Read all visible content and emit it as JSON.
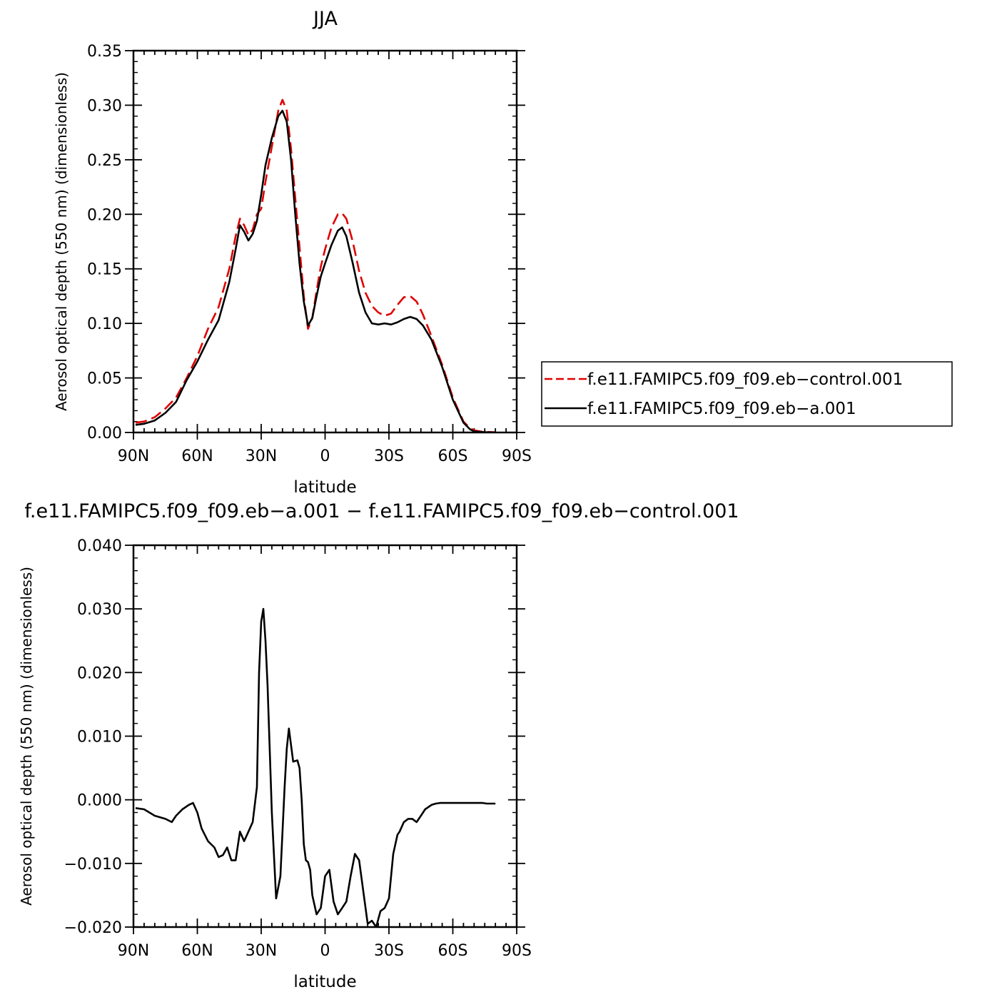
{
  "chart_data": [
    {
      "type": "line",
      "title": "JJA",
      "xlabel": "latitude",
      "ylabel": "Aerosol optical depth (550 nm) (dimensionless)",
      "xlim": [
        -90,
        90
      ],
      "ylim": [
        0,
        0.35
      ],
      "xticks": [
        -90,
        -60,
        -30,
        0,
        30,
        60,
        90
      ],
      "xtick_labels": [
        "90N",
        "60N",
        "30N",
        "0",
        "30S",
        "60S",
        "90S"
      ],
      "yticks": [
        0,
        0.05,
        0.1,
        0.15,
        0.2,
        0.25,
        0.3,
        0.35
      ],
      "ytick_labels": [
        "0.00",
        "0.05",
        "0.10",
        "0.15",
        "0.20",
        "0.25",
        "0.30",
        "0.35"
      ],
      "legend_position": "right",
      "series": [
        {
          "name": "f.e11.FAMIPC5.f09_f09.eb−control.001",
          "color": "#e00000",
          "dash": "dashed",
          "x": [
            -89,
            -85,
            -80,
            -75,
            -70,
            -65,
            -60,
            -55,
            -50,
            -45,
            -42,
            -40,
            -38,
            -36,
            -34,
            -32,
            -30,
            -28,
            -25,
            -22,
            -20,
            -18,
            -16,
            -14,
            -12,
            -10,
            -8,
            -6,
            -4,
            -2,
            0,
            3,
            6,
            8,
            10,
            13,
            16,
            19,
            22,
            25,
            28,
            31,
            34,
            37,
            40,
            43,
            46,
            50,
            55,
            60,
            65,
            68,
            70,
            73,
            76,
            80
          ],
          "y": [
            0.009,
            0.01,
            0.014,
            0.022,
            0.032,
            0.05,
            0.07,
            0.095,
            0.115,
            0.15,
            0.18,
            0.196,
            0.19,
            0.181,
            0.186,
            0.2,
            0.205,
            0.23,
            0.262,
            0.295,
            0.305,
            0.295,
            0.26,
            0.215,
            0.17,
            0.125,
            0.095,
            0.105,
            0.13,
            0.152,
            0.168,
            0.188,
            0.2,
            0.201,
            0.196,
            0.175,
            0.148,
            0.128,
            0.116,
            0.11,
            0.107,
            0.109,
            0.117,
            0.124,
            0.125,
            0.12,
            0.108,
            0.088,
            0.062,
            0.032,
            0.01,
            0.004,
            0.002,
            0.001,
            0.0005,
            0.0002
          ]
        },
        {
          "name": "f.e11.FAMIPC5.f09_f09.eb−a.001",
          "color": "#000000",
          "dash": "solid",
          "x": [
            -89,
            -85,
            -80,
            -75,
            -70,
            -65,
            -60,
            -55,
            -50,
            -45,
            -42,
            -40,
            -38,
            -36,
            -34,
            -32,
            -30,
            -28,
            -25,
            -22,
            -20,
            -18,
            -16,
            -14,
            -12,
            -10,
            -8,
            -6,
            -4,
            -2,
            0,
            3,
            6,
            8,
            10,
            13,
            16,
            19,
            22,
            25,
            28,
            31,
            34,
            37,
            40,
            43,
            46,
            50,
            55,
            60,
            65,
            68,
            70,
            73,
            76,
            80
          ],
          "y": [
            0.007,
            0.008,
            0.011,
            0.018,
            0.028,
            0.048,
            0.065,
            0.085,
            0.103,
            0.138,
            0.168,
            0.19,
            0.184,
            0.176,
            0.182,
            0.194,
            0.218,
            0.245,
            0.27,
            0.29,
            0.295,
            0.285,
            0.25,
            0.2,
            0.155,
            0.12,
            0.098,
            0.105,
            0.125,
            0.143,
            0.155,
            0.172,
            0.185,
            0.188,
            0.18,
            0.155,
            0.128,
            0.11,
            0.1,
            0.099,
            0.1,
            0.099,
            0.101,
            0.104,
            0.106,
            0.104,
            0.098,
            0.085,
            0.06,
            0.03,
            0.009,
            0.003,
            0.001,
            0.0005,
            0.0002,
            0.0001
          ]
        }
      ]
    },
    {
      "type": "line",
      "title": "f.e11.FAMIPC5.f09_f09.eb−a.001 − f.e11.FAMIPC5.f09_f09.eb−control.001",
      "xlabel": "latitude",
      "ylabel": "Aerosol optical depth (550 nm) (dimensionless)",
      "xlim": [
        -90,
        90
      ],
      "ylim": [
        -0.02,
        0.04
      ],
      "xticks": [
        -90,
        -60,
        -30,
        0,
        30,
        60,
        90
      ],
      "xtick_labels": [
        "90N",
        "60N",
        "30N",
        "0",
        "30S",
        "60S",
        "90S"
      ],
      "yticks": [
        -0.02,
        -0.01,
        0,
        0.01,
        0.02,
        0.03,
        0.04
      ],
      "ytick_labels": [
        "−0.020",
        "−0.010",
        "0.000",
        "0.010",
        "0.020",
        "0.030",
        "0.040"
      ],
      "series": [
        {
          "color": "#000000",
          "dash": "solid",
          "x": [
            -89,
            -85,
            -80,
            -75,
            -72,
            -70,
            -67,
            -64,
            -62,
            -60,
            -58,
            -55,
            -52,
            -50,
            -48,
            -46,
            -44,
            -42,
            -40,
            -38,
            -36,
            -34,
            -32,
            -31,
            -30,
            -29,
            -28,
            -27,
            -25,
            -23,
            -21,
            -19,
            -18,
            -17,
            -15,
            -13,
            -12,
            -11,
            -10,
            -9,
            -8,
            -7,
            -6,
            -4,
            -2,
            0,
            2,
            4,
            6,
            8,
            10,
            12,
            14,
            16,
            18,
            20,
            22,
            24,
            26,
            28,
            30,
            32,
            34,
            35,
            37,
            39,
            41,
            43,
            45,
            47,
            50,
            52,
            54,
            56,
            58,
            60,
            62,
            64,
            66,
            67,
            68,
            70,
            72,
            74,
            76,
            80
          ],
          "y": [
            -0.0013,
            -0.0015,
            -0.0025,
            -0.003,
            -0.0035,
            -0.0025,
            -0.0015,
            -0.0008,
            -0.0005,
            -0.002,
            -0.0045,
            -0.0065,
            -0.0075,
            -0.009,
            -0.0087,
            -0.0075,
            -0.0095,
            -0.0095,
            -0.005,
            -0.0065,
            -0.005,
            -0.0035,
            0.002,
            0.02,
            0.028,
            0.03,
            0.025,
            0.018,
            -0.002,
            -0.0155,
            -0.012,
            0.002,
            0.008,
            0.0112,
            0.006,
            0.0062,
            0.005,
            0.0,
            -0.007,
            -0.0095,
            -0.0098,
            -0.011,
            -0.015,
            -0.018,
            -0.017,
            -0.012,
            -0.011,
            -0.016,
            -0.018,
            -0.017,
            -0.016,
            -0.012,
            -0.0085,
            -0.0095,
            -0.0145,
            -0.0195,
            -0.019,
            -0.02,
            -0.0175,
            -0.017,
            -0.0155,
            -0.0085,
            -0.0055,
            -0.005,
            -0.0035,
            -0.003,
            -0.003,
            -0.0035,
            -0.0025,
            -0.0015,
            -0.0008,
            -0.0006,
            -0.0005,
            -0.0005,
            -0.0005,
            -0.0005,
            -0.0005,
            -0.0005,
            -0.0005,
            -0.0005,
            -0.0005,
            -0.0005,
            -0.0005,
            -0.0005,
            -0.0006,
            -0.0006
          ]
        }
      ]
    }
  ]
}
